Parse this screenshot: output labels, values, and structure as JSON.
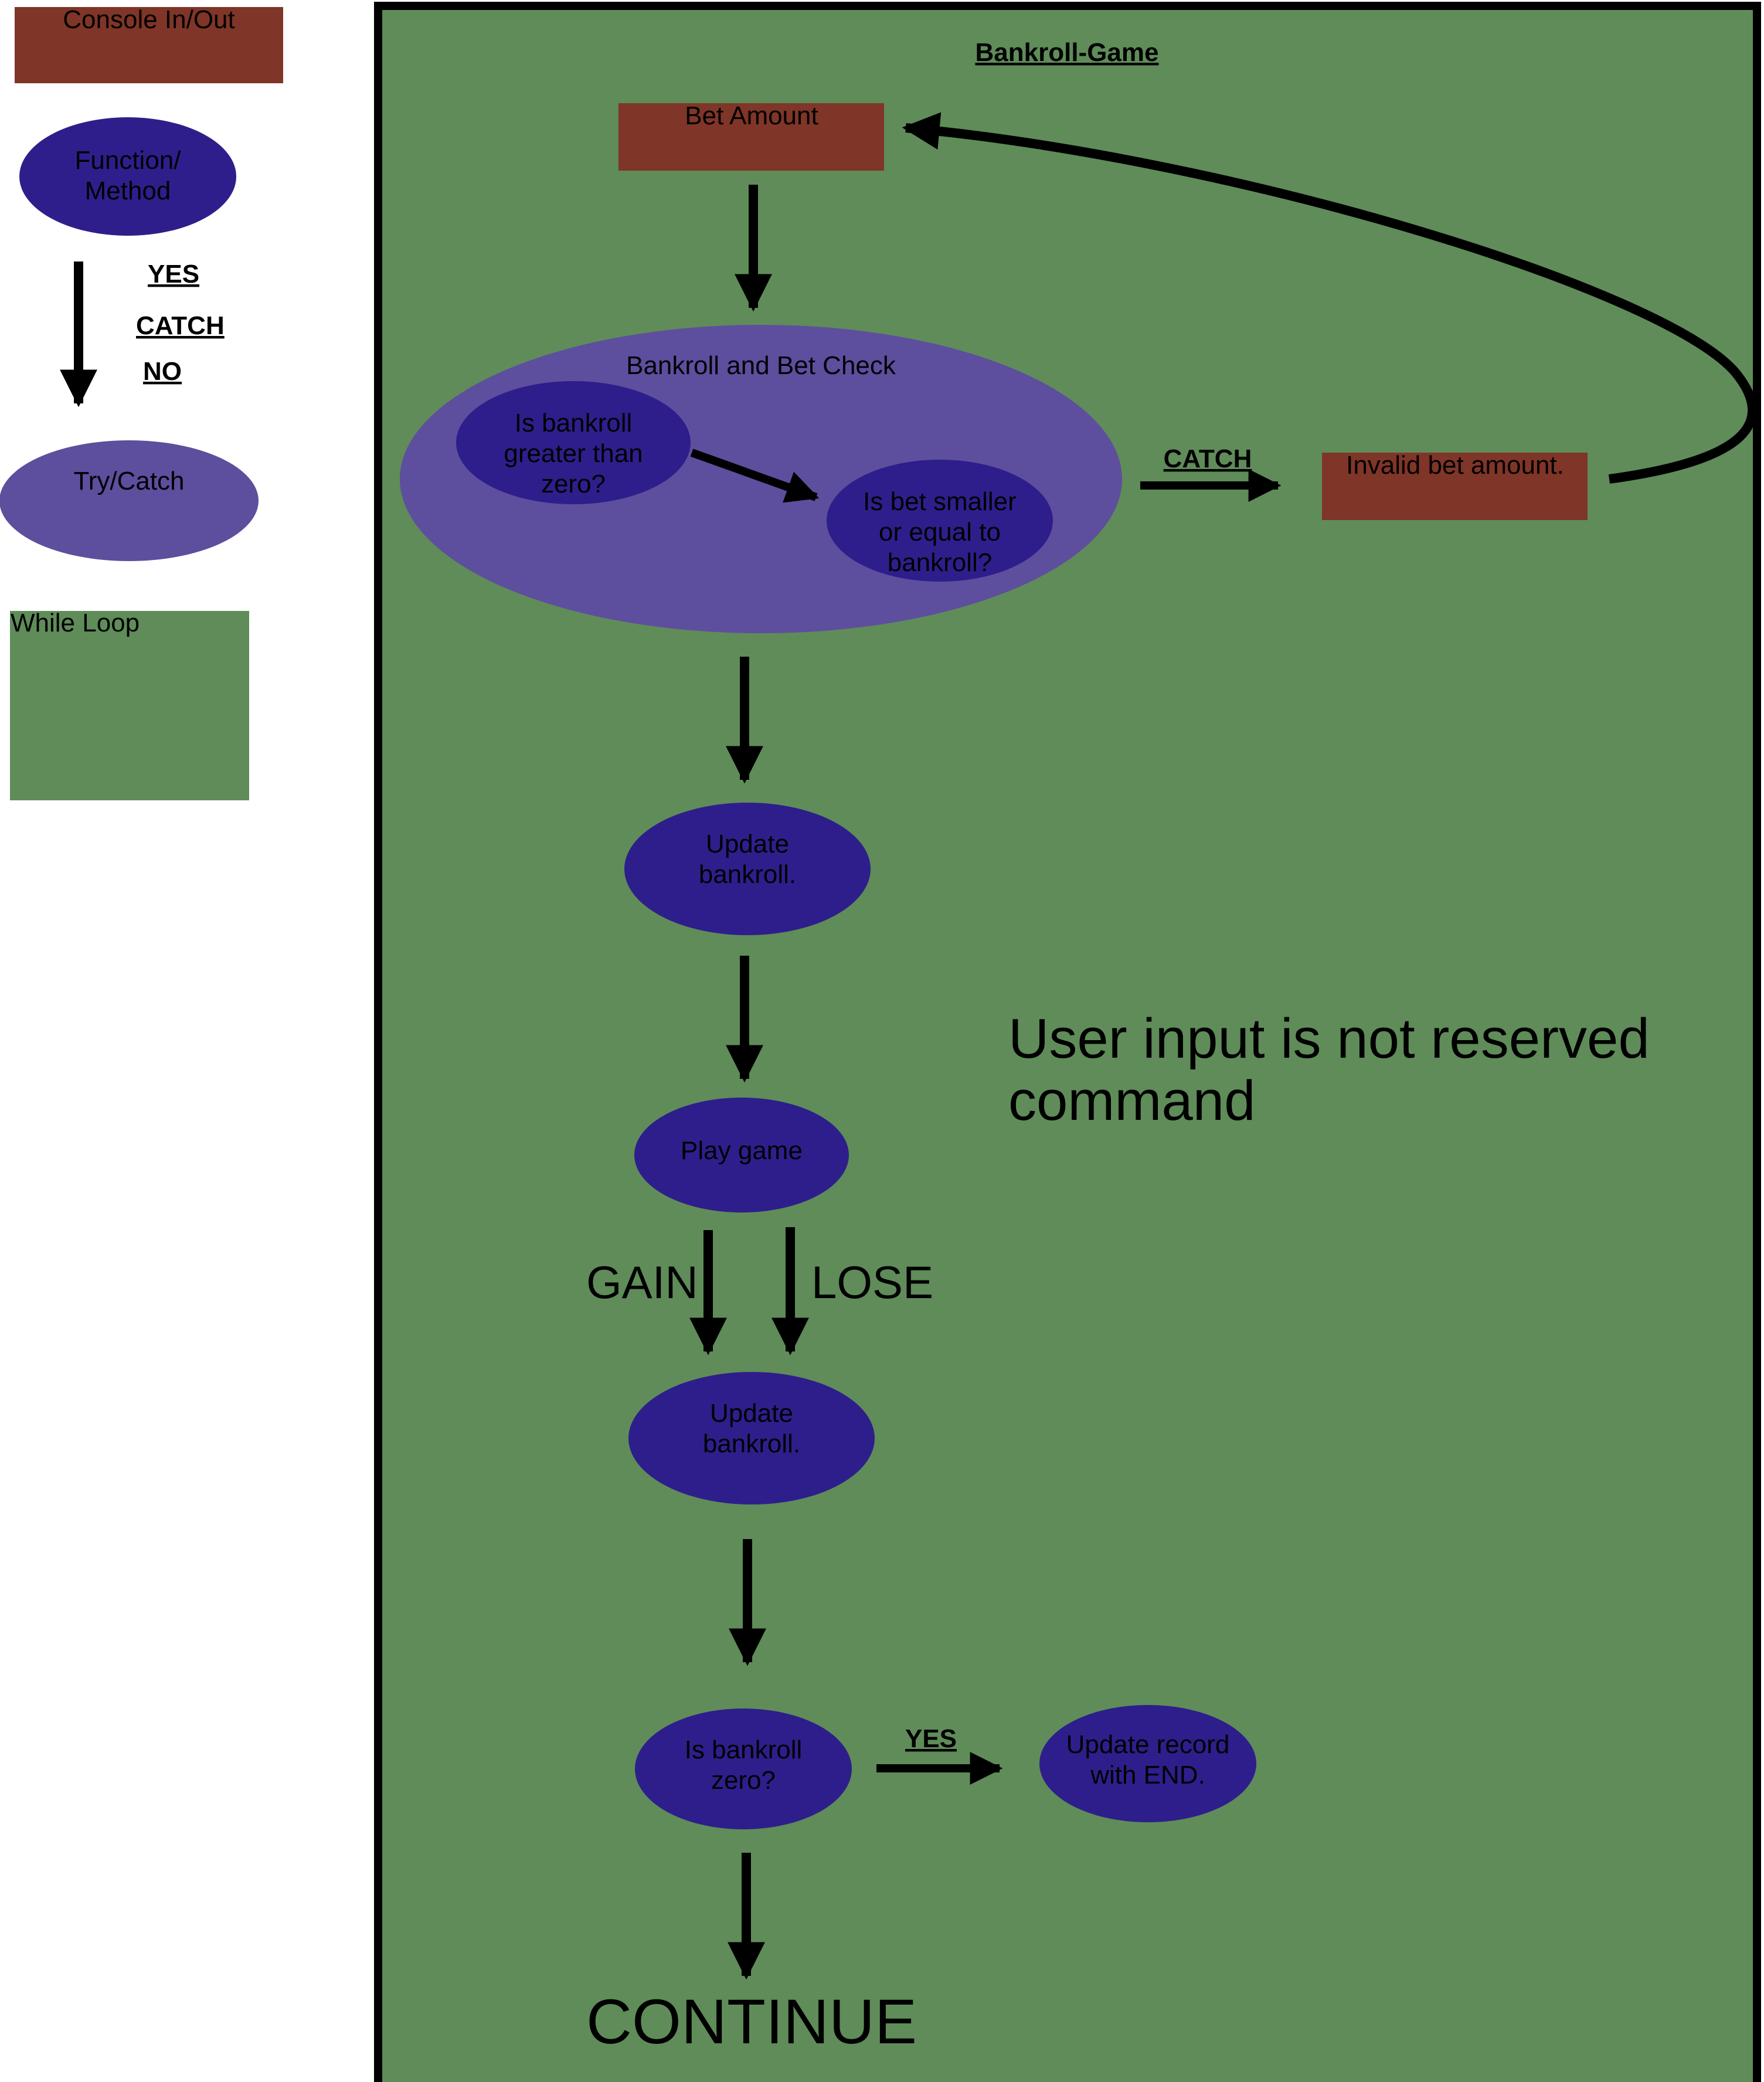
{
  "colors": {
    "console_io": "#7f3527",
    "function_method": "#2e1e8b",
    "try_catch": "#5e4e9e",
    "while_loop": "#5f8c59",
    "arrow": "#000000"
  },
  "legend": {
    "console_label": "Console In/Out",
    "function_label_line1": "Function/",
    "function_label_line2": "Method",
    "arrow_yes": "YES",
    "arrow_catch": "CATCH",
    "arrow_no": "NO",
    "trycatch_label": "Try/Catch",
    "whileloop_label": "While Loop"
  },
  "loop": {
    "title": "Bankroll-Game",
    "bet_amount": "Bet Amount",
    "check_title": "Bankroll and Bet Check",
    "check1_line1": "Is bankroll",
    "check1_line2": "greater than",
    "check1_line3": "zero?",
    "check2_line1": "Is bet smaller",
    "check2_line2": "or equal to",
    "check2_line3": "bankroll?",
    "catch_label": "CATCH",
    "invalid_bet": "Invalid bet amount.",
    "update1_line1": "Update",
    "update1_line2": "bankroll.",
    "note_line1": "User input is not reserved",
    "note_line2": "command",
    "play_game": "Play game",
    "gain": "GAIN",
    "lose": "LOSE",
    "update2_line1": "Update",
    "update2_line2": "bankroll.",
    "zero_line1": "Is bankroll",
    "zero_line2": "zero?",
    "yes_label": "YES",
    "record_line1": "Update record",
    "record_line2": "with END.",
    "continue": "CONTINUE"
  }
}
